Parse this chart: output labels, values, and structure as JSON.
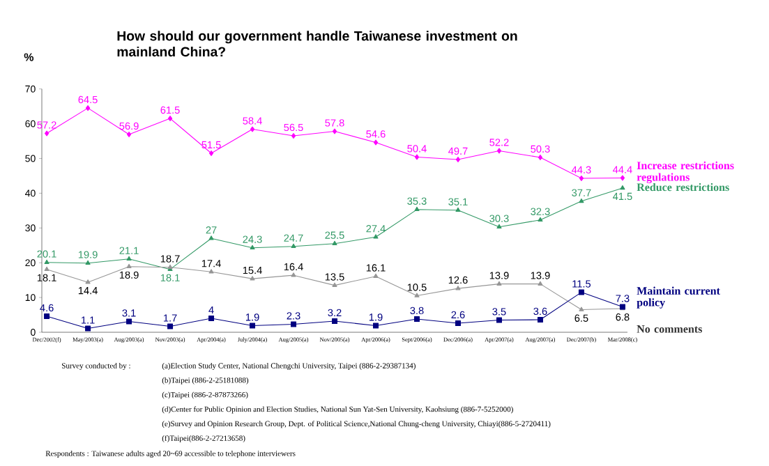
{
  "chart_data": {
    "type": "line",
    "title": "How should our government handle Taiwanese investment on mainland China?",
    "ylabel": "%",
    "categories": [
      "Dec/2002(f)",
      "May/2003(a)",
      "Aug/2003(a)",
      "Nov/2003(a)",
      "Apr/2004(a)",
      "July/2004(a)",
      "Aug/2005(a)",
      "Nov/2005(a)",
      "Apr/2006(a)",
      "Sept/2006(a)",
      "Dec/2006(a)",
      "Apr/2007(a)",
      "Aug/2007(a)",
      "Dec/2007(b)",
      "Mar/2008(c)"
    ],
    "series": [
      {
        "name": "Increase restrictions regulations",
        "color": "#ff00ff",
        "marker": "diamond",
        "values": [
          57.2,
          64.5,
          56.9,
          61.5,
          51.5,
          58.4,
          56.5,
          57.8,
          54.6,
          50.4,
          49.7,
          52.2,
          50.3,
          44.3,
          44.4
        ]
      },
      {
        "name": "Reduce restrictions",
        "color": "#339966",
        "marker": "triangle",
        "values": [
          20.1,
          19.9,
          21.1,
          18.1,
          27,
          24.3,
          24.7,
          25.5,
          27.4,
          35.3,
          35.1,
          30.3,
          32.3,
          37.7,
          41.5
        ]
      },
      {
        "name": "No comments",
        "color": "#969696",
        "marker": "triangle",
        "values": [
          18.1,
          14.4,
          18.9,
          18.7,
          17.4,
          15.4,
          16.4,
          13.5,
          16.1,
          10.5,
          12.6,
          13.9,
          13.9,
          6.5,
          6.8
        ]
      },
      {
        "name": "Maintain current policy",
        "color": "#000080",
        "marker": "square",
        "values": [
          4.6,
          1.1,
          3.1,
          1.7,
          4,
          1.9,
          2.3,
          3.2,
          1.9,
          3.8,
          2.6,
          3.5,
          3.6,
          11.5,
          7.3
        ]
      }
    ],
    "ylim": [
      0,
      70
    ],
    "yticks": [
      0,
      10,
      20,
      30,
      40,
      50,
      60,
      70
    ],
    "data_labels": true,
    "grid": false,
    "legend": false,
    "line_style": "solid",
    "annotations": [
      "Survey conducted by :",
      "(a)Election Study Center, National Chengchi University, Taipei (886-2-29387134)",
      "(b)Taipei (886-2-25181088)",
      "(c)Taipei (886-2-87873266)",
      "(d)Center for Public Opinion and Election Studies, National Sun Yat-Sen University, Kaohsiung (886-7-5252000)",
      "(e)Survey and Opinion Research Group, Dept. of Political Science,National Chung-cheng University, Chiayi(886-5-2720411)",
      "(f)Taipei(886-2-27213658)",
      "Respondents : Taiwanese adults aged 20~69 accessible to telephone interviewers"
    ]
  }
}
